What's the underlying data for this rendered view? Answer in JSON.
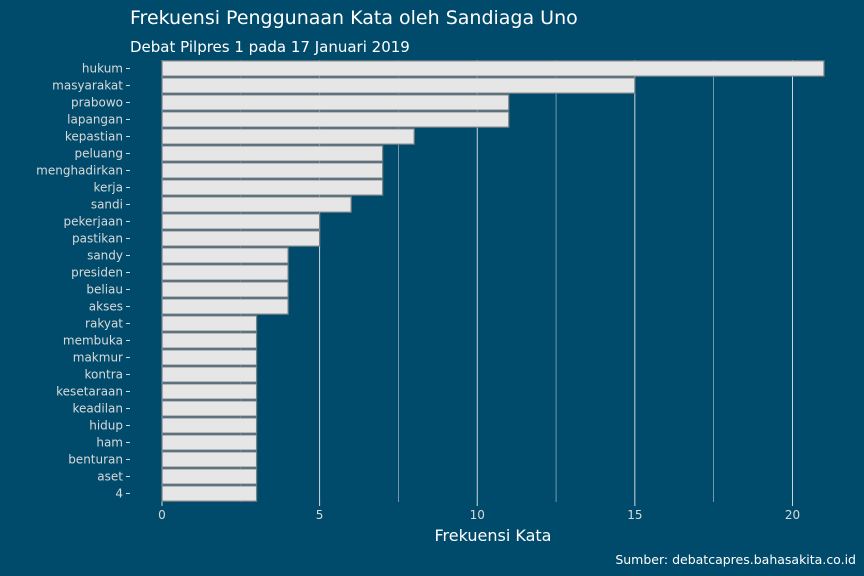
{
  "chart_data": {
    "type": "bar",
    "orientation": "horizontal",
    "title": "Frekuensi Penggunaan Kata oleh Sandiaga Uno",
    "subtitle": "Debat Pilpres 1 pada 17 Januari 2019",
    "xlabel": "Frekuensi Kata",
    "ylabel": "",
    "caption": "Sumber: debatcapres.bahasakita.co.id",
    "categories": [
      "hukum",
      "masyarakat",
      "prabowo",
      "lapangan",
      "kepastian",
      "peluang",
      "menghadirkan",
      "kerja",
      "sandi",
      "pekerjaan",
      "pastikan",
      "sandy",
      "presiden",
      "beliau",
      "akses",
      "rakyat",
      "membuka",
      "makmur",
      "kontra",
      "kesetaraan",
      "keadilan",
      "hidup",
      "ham",
      "benturan",
      "aset",
      "4"
    ],
    "values": [
      21,
      15,
      11,
      11,
      8,
      7,
      7,
      7,
      6,
      5,
      5,
      4,
      4,
      4,
      4,
      3,
      3,
      3,
      3,
      3,
      3,
      3,
      3,
      3,
      3,
      3
    ],
    "xlim": [
      0,
      21
    ],
    "xticks": [
      0,
      5,
      10,
      15,
      20
    ],
    "grid": true,
    "legend": "none",
    "colors": {
      "background": "#004b6b",
      "bar_fill": "#e6e6e6",
      "bar_outline": "#7a7f86",
      "text": "#ffffff",
      "axis_text": "#d9d9d9"
    }
  }
}
